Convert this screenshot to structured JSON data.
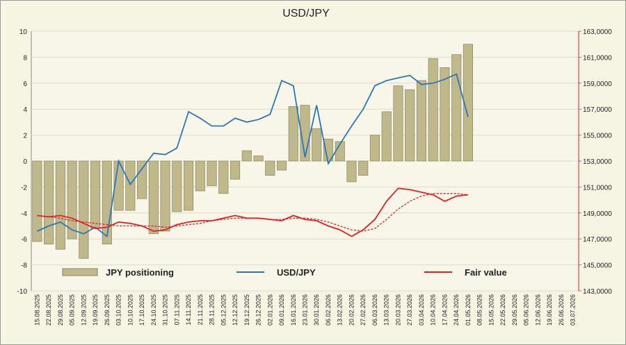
{
  "chart_data": {
    "type": "bar_line",
    "title": "USD/JPY",
    "categories": [
      "15.08.2025",
      "22.08.2025",
      "29.08.2025",
      "05.09.2025",
      "12.09.2025",
      "19.09.2025",
      "26.09.2025",
      "03.10.2025",
      "10.10.2025",
      "17.10.2025",
      "24.10.2025",
      "31.10.2025",
      "07.11.2025",
      "14.11.2025",
      "21.11.2025",
      "28.11.2025",
      "05.12.2025",
      "12.12.2025",
      "19.12.2025",
      "26.12.2025",
      "02.01.2026",
      "09.01.2026",
      "16.01.2026",
      "23.01.2026",
      "30.01.2026",
      "06.02.2026",
      "13.02.2026",
      "20.02.2026",
      "27.02.2026",
      "06.03.2026",
      "13.03.2026",
      "20.03.2026",
      "27.03.2026",
      "03.04.2026",
      "10.04.2026",
      "17.04.2026",
      "24.04.2026",
      "01.05.2026",
      "08.05.2026",
      "15.05.2026",
      "22.05.2026",
      "29.05.2026",
      "05.06.2026",
      "12.06.2026",
      "19.06.2026",
      "26.06.2026",
      "03.07.2026"
    ],
    "series": [
      {
        "name": "JPY positioning",
        "type": "bar",
        "color": "#bfb88a",
        "values": [
          -6.2,
          -6.4,
          -6.8,
          -6.0,
          -7.5,
          -5.2,
          -6.4,
          -3.8,
          -3.8,
          -2.9,
          -5.6,
          -5.4,
          -3.9,
          -3.8,
          -2.3,
          -1.9,
          -2.5,
          -1.4,
          0.8,
          0.4,
          -1.1,
          -0.7,
          4.2,
          4.3,
          2.5,
          1.7,
          1.5,
          -1.6,
          -1.1,
          2.0,
          3.8,
          5.8,
          5.5,
          6.2,
          7.9,
          7.2,
          8.2,
          9.0,
          null,
          null,
          null,
          null,
          null,
          null,
          null,
          null,
          null
        ]
      },
      {
        "name": "USD/JPY",
        "type": "line",
        "axis": "y2",
        "color": "#2e75b6",
        "values": [
          147.6,
          148.0,
          148.3,
          147.7,
          147.4,
          147.9,
          147.2,
          153.0,
          151.2,
          152.4,
          153.6,
          153.5,
          154.0,
          156.8,
          156.3,
          155.7,
          155.7,
          156.3,
          156.0,
          156.2,
          156.6,
          159.2,
          158.8,
          153.3,
          157.3,
          152.8,
          154.3,
          155.7,
          157.0,
          158.8,
          159.2,
          159.4,
          159.6,
          158.9,
          159.0,
          159.3,
          159.7,
          156.4,
          null,
          null,
          null,
          null,
          null,
          null,
          null,
          null,
          null
        ]
      },
      {
        "name": "Fair value",
        "type": "line",
        "axis": "y2",
        "color": "#e31e24",
        "values": [
          148.8,
          148.7,
          148.8,
          148.6,
          148.2,
          147.8,
          147.9,
          148.3,
          148.2,
          148.0,
          147.6,
          147.7,
          148.1,
          148.3,
          148.4,
          148.4,
          148.6,
          148.8,
          148.6,
          148.6,
          148.5,
          148.4,
          148.8,
          148.5,
          148.4,
          148.0,
          147.7,
          147.2,
          147.7,
          148.5,
          149.9,
          150.9,
          150.8,
          150.6,
          150.4,
          149.9,
          150.3,
          150.4,
          null,
          null,
          null,
          null,
          null,
          null,
          null,
          null,
          null
        ]
      },
      {
        "type": "line",
        "axis": "y2",
        "dashed": true,
        "color": "#e31e24",
        "values": [
          148.8,
          148.7,
          148.6,
          148.4,
          148.3,
          148.2,
          148.1,
          148.0,
          148.0,
          148.0,
          148.0,
          147.9,
          148.0,
          148.1,
          148.2,
          148.4,
          148.5,
          148.6,
          148.6,
          148.6,
          148.5,
          148.5,
          148.6,
          148.6,
          148.5,
          148.3,
          148.0,
          147.7,
          147.6,
          147.8,
          148.5,
          149.3,
          149.9,
          150.3,
          150.5,
          150.5,
          150.5,
          150.4,
          null,
          null,
          null,
          null,
          null,
          null,
          null,
          null,
          null
        ]
      }
    ],
    "ylim": [
      -10,
      10
    ],
    "yticks": [
      -10,
      -8,
      -6,
      -4,
      -2,
      0,
      2,
      4,
      6,
      8,
      10
    ],
    "y2lim": [
      143,
      163
    ],
    "y2ticks": [
      {
        "value": 143,
        "label": "143,0000"
      },
      {
        "value": 145,
        "label": "145,0000"
      },
      {
        "value": 147,
        "label": "147,0000"
      },
      {
        "value": 149,
        "label": "149,0000"
      },
      {
        "value": 151,
        "label": "151,0000"
      },
      {
        "value": 153,
        "label": "153,0000"
      },
      {
        "value": 155,
        "label": "155,0000"
      },
      {
        "value": 157,
        "label": "157,0000"
      },
      {
        "value": 159,
        "label": "159,0000"
      },
      {
        "value": 161,
        "label": "161,0000"
      },
      {
        "value": 163,
        "label": "163,0000"
      }
    ],
    "grid": true,
    "legend": "bottom"
  }
}
